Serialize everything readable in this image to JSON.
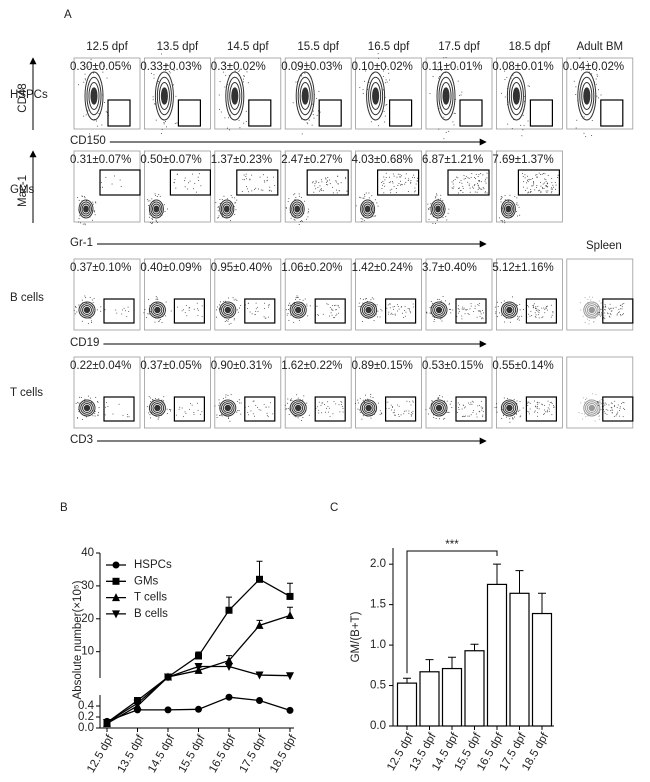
{
  "panel_labels": [
    "A",
    "B",
    "C"
  ],
  "flow": {
    "columns": [
      "12.5 dpf",
      "13.5 dpf",
      "14.5 dpf",
      "15.5 dpf",
      "16.5 dpf",
      "17.5 dpf",
      "18.5 dpf",
      "Adult BM"
    ],
    "spleen_label": "Spleen",
    "rows": [
      {
        "name": "HSPCs",
        "y_axis": "CD48",
        "x_axis": "CD150",
        "frequencies": [
          "0.30±0.05%",
          "0.33±0.03%",
          "0.3±0.02%",
          "0.09±0.03%",
          "0.10±0.02%",
          "0.11±0.01%",
          "0.08±0.01%",
          "0.04±0.02%"
        ]
      },
      {
        "name": "GMs",
        "y_axis": "Mac-1",
        "x_axis": "Gr-1",
        "frequencies": [
          "0.31±0.07%",
          "0.50±0.07%",
          "1.37±0.23%",
          "2.47±0.27%",
          "4.03±0.68%",
          "6.87±1.21%",
          "7.69±1.37%"
        ]
      },
      {
        "name": "B cells",
        "x_axis": "CD19",
        "frequencies": [
          "0.37±0.10%",
          "0.40±0.09%",
          "0.95±0.40%",
          "1.06±0.20%",
          "1.42±0.24%",
          "3.7±0.40%",
          "5.12±1.16%"
        ]
      },
      {
        "name": "T cells",
        "x_axis": "CD3",
        "frequencies": [
          "0.22±0.04%",
          "0.37±0.05%",
          "0.90±0.31%",
          "1.62±0.22%",
          "0.89±0.15%",
          "0.53±0.15%",
          "0.55±0.14%"
        ]
      }
    ]
  },
  "chart_data": [
    {
      "type": "line",
      "y_label": "Absolute number(×10⁵)",
      "categories": [
        "12.5 dpf",
        "13.5 dpf",
        "14.5 dpf",
        "15.5 dpf",
        "16.5 dpf",
        "17.5 dpf",
        "18.5 dpf"
      ],
      "broken_axis": true,
      "ylim_lower": [
        0,
        0.6
      ],
      "yticks_lower": [
        {
          "value": 0,
          "label": "0.0"
        },
        0.2,
        0.4
      ],
      "ylim_upper": [
        2,
        40
      ],
      "yticks_upper": [
        10,
        20,
        30,
        40
      ],
      "legend": "upper-left",
      "series": [
        {
          "name": "HSPCs",
          "color": "#000000",
          "marker": "circle",
          "values": [
            0.12,
            0.33,
            0.33,
            0.34,
            0.56,
            0.5,
            0.32
          ]
        },
        {
          "name": "GMs",
          "color": "#000000",
          "marker": "square",
          "values": [
            0.1,
            0.5,
            2.3,
            8.7,
            22.6,
            32,
            26.8
          ],
          "errors": [
            null,
            null,
            null,
            1.2,
            4,
            5.5,
            4
          ]
        },
        {
          "name": "T cells",
          "color": "#000000",
          "marker": "triangle-up",
          "values": [
            0.08,
            0.4,
            2.3,
            4.3,
            7.3,
            18,
            21
          ],
          "errors": [
            null,
            null,
            null,
            0.8,
            1.5,
            1.5,
            2.5
          ]
        },
        {
          "name": "B cells",
          "color": "#000000",
          "marker": "triangle-down",
          "values": [
            0.1,
            0.45,
            2.3,
            5.5,
            5.5,
            2.9,
            2.7
          ]
        }
      ]
    },
    {
      "type": "bar",
      "y_label": "GM/(B+T)",
      "categories": [
        "12.5 dpf",
        "13.5 dpf",
        "14.5 dpf",
        "15.5 dpf",
        "16.5 dpf",
        "17.5 dpf",
        "18.5 dpf"
      ],
      "values": [
        0.53,
        0.67,
        0.71,
        0.93,
        1.75,
        1.64,
        1.39
      ],
      "errors": [
        0.06,
        0.15,
        0.14,
        0.08,
        0.25,
        0.28,
        0.25
      ],
      "color": "#ffffff",
      "ylim": [
        0,
        2.2
      ],
      "yticks": [
        {
          "value": 0,
          "label": "0.0"
        },
        0.5,
        {
          "value": 1,
          "label": "1.0"
        },
        1.5,
        {
          "value": 2,
          "label": "2.0"
        }
      ],
      "annotation": "***"
    }
  ]
}
